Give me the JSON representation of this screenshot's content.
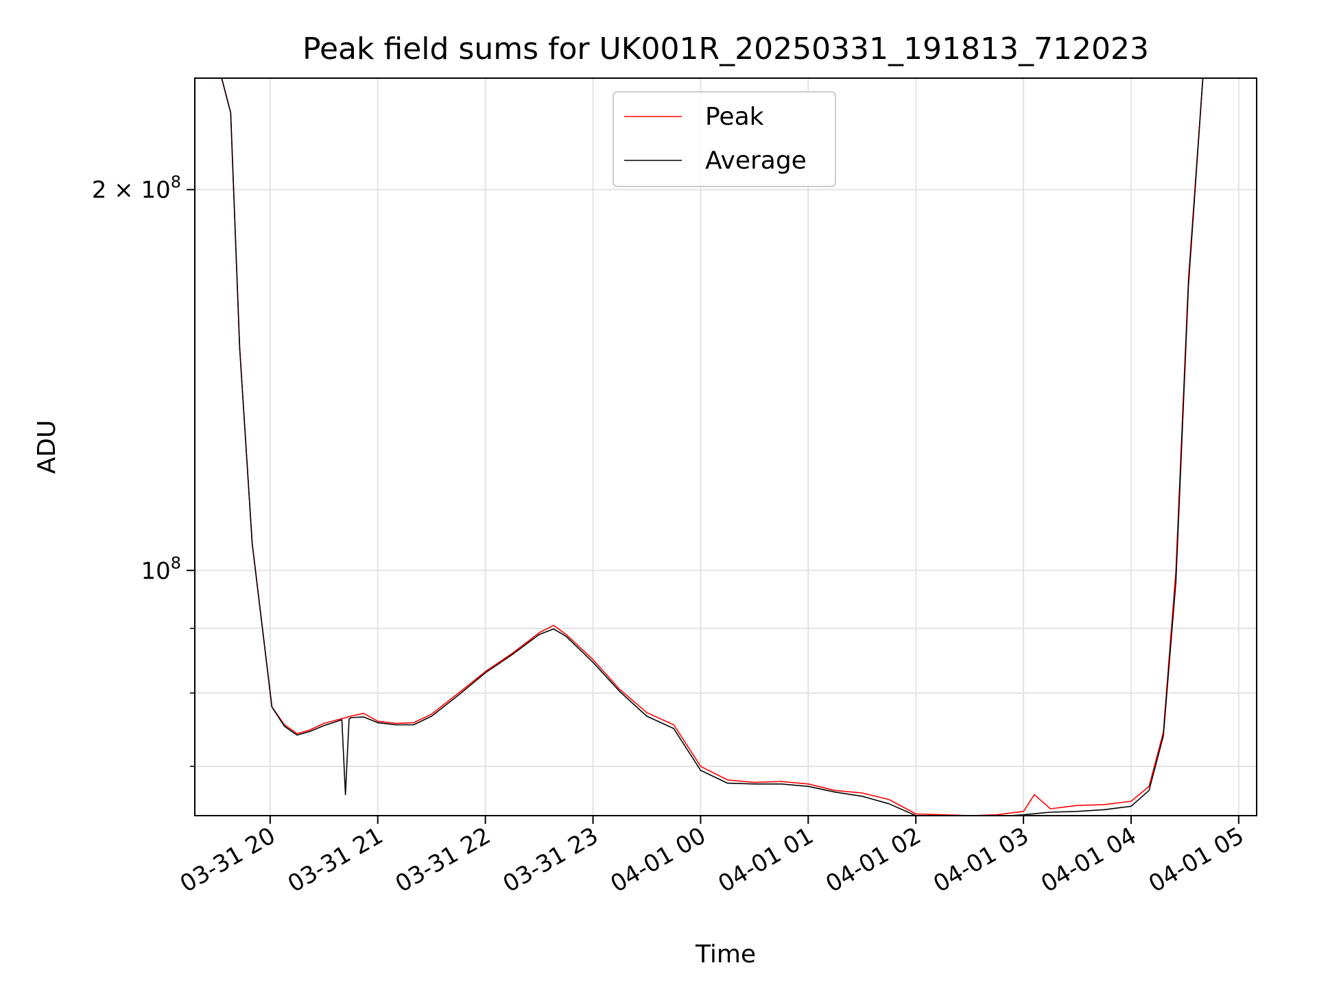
{
  "chart_data": {
    "type": "line",
    "title": "Peak field sums for UK001R_20250331_191813_712023",
    "xlabel": "Time",
    "ylabel": "ADU",
    "x_axis_type": "datetime",
    "xlim": [
      "2025-03-31 19:18",
      "2025-04-01 05:10"
    ],
    "y_scale": "log",
    "ylim": [
      64000000,
      245000000
    ],
    "grid": true,
    "legend_position": "top-center",
    "x_ticks": [
      {
        "value": "2025-03-31 20:00",
        "label": "03-31 20"
      },
      {
        "value": "2025-03-31 21:00",
        "label": "03-31 21"
      },
      {
        "value": "2025-03-31 22:00",
        "label": "03-31 22"
      },
      {
        "value": "2025-03-31 23:00",
        "label": "03-31 23"
      },
      {
        "value": "2025-04-01 00:00",
        "label": "04-01 00"
      },
      {
        "value": "2025-04-01 01:00",
        "label": "04-01 01"
      },
      {
        "value": "2025-04-01 02:00",
        "label": "04-01 02"
      },
      {
        "value": "2025-04-01 03:00",
        "label": "04-01 03"
      },
      {
        "value": "2025-04-01 04:00",
        "label": "04-01 04"
      },
      {
        "value": "2025-04-01 05:00",
        "label": "04-01 05"
      }
    ],
    "y_major_ticks": [
      {
        "value": 100000000,
        "mantissa": "",
        "base": "10",
        "exponent": "8"
      },
      {
        "value": 200000000,
        "mantissa": "2 × ",
        "base": "10",
        "exponent": "8"
      }
    ],
    "y_minor_ticks": [
      70000000,
      80000000,
      90000000
    ],
    "series": [
      {
        "name": "Peak",
        "color": "#ff0000",
        "x": [
          "2025-03-31 19:18",
          "2025-03-31 19:33",
          "2025-03-31 19:38",
          "2025-03-31 19:43",
          "2025-03-31 19:50",
          "2025-03-31 20:01",
          "2025-03-31 20:08",
          "2025-03-31 20:15",
          "2025-03-31 20:22",
          "2025-03-31 20:30",
          "2025-03-31 20:45",
          "2025-03-31 20:52",
          "2025-03-31 21:00",
          "2025-03-31 21:10",
          "2025-03-31 21:20",
          "2025-03-31 21:30",
          "2025-03-31 21:45",
          "2025-03-31 22:00",
          "2025-03-31 22:15",
          "2025-03-31 22:30",
          "2025-03-31 22:38",
          "2025-03-31 22:45",
          "2025-03-31 23:00",
          "2025-03-31 23:15",
          "2025-03-31 23:30",
          "2025-03-31 23:45",
          "2025-04-01 00:00",
          "2025-04-01 00:15",
          "2025-04-01 00:30",
          "2025-04-01 00:45",
          "2025-04-01 01:00",
          "2025-04-01 01:15",
          "2025-04-01 01:30",
          "2025-04-01 01:45",
          "2025-04-01 02:00",
          "2025-04-01 02:15",
          "2025-04-01 02:30",
          "2025-04-01 02:45",
          "2025-04-01 03:00",
          "2025-04-01 03:06",
          "2025-04-01 03:15",
          "2025-04-01 03:30",
          "2025-04-01 03:45",
          "2025-04-01 04:00",
          "2025-04-01 04:10",
          "2025-04-01 04:18",
          "2025-04-01 04:25",
          "2025-04-01 04:32",
          "2025-04-01 04:40",
          "2025-04-01 04:47",
          "2025-04-01 04:55"
        ],
        "values": [
          245000000,
          245000000,
          230000000,
          150000000,
          105000000,
          78000000,
          75500000,
          74300000,
          74800000,
          75700000,
          76700000,
          77100000,
          76000000,
          75700000,
          75800000,
          77000000,
          80000000,
          83200000,
          86000000,
          89300000,
          90500000,
          89000000,
          85000000,
          80500000,
          77200000,
          75500000,
          70000000,
          68300000,
          68000000,
          68100000,
          67800000,
          67000000,
          66700000,
          65900000,
          64200000,
          64100000,
          64000000,
          64100000,
          64500000,
          66500000,
          64800000,
          65200000,
          65300000,
          65700000,
          67500000,
          74500000,
          100000000,
          170000000,
          245000000,
          245000000,
          245000000
        ]
      },
      {
        "name": "Average",
        "color": "#000000",
        "x": [
          "2025-03-31 19:18",
          "2025-03-31 19:33",
          "2025-03-31 19:38",
          "2025-03-31 19:43",
          "2025-03-31 19:50",
          "2025-03-31 20:01",
          "2025-03-31 20:08",
          "2025-03-31 20:15",
          "2025-03-31 20:22",
          "2025-03-31 20:30",
          "2025-03-31 20:40",
          "2025-03-31 20:42",
          "2025-03-31 20:44",
          "2025-03-31 20:45",
          "2025-03-31 20:52",
          "2025-03-31 21:00",
          "2025-03-31 21:10",
          "2025-03-31 21:20",
          "2025-03-31 21:30",
          "2025-03-31 21:45",
          "2025-03-31 22:00",
          "2025-03-31 22:15",
          "2025-03-31 22:30",
          "2025-03-31 22:38",
          "2025-03-31 22:45",
          "2025-03-31 23:00",
          "2025-03-31 23:15",
          "2025-03-31 23:30",
          "2025-03-31 23:45",
          "2025-04-01 00:00",
          "2025-04-01 00:15",
          "2025-04-01 00:30",
          "2025-04-01 00:45",
          "2025-04-01 01:00",
          "2025-04-01 01:15",
          "2025-04-01 01:30",
          "2025-04-01 01:45",
          "2025-04-01 02:00",
          "2025-04-01 02:15",
          "2025-04-01 02:30",
          "2025-04-01 02:45",
          "2025-04-01 03:00",
          "2025-04-01 03:15",
          "2025-04-01 03:30",
          "2025-04-01 03:45",
          "2025-04-01 04:00",
          "2025-04-01 04:10",
          "2025-04-01 04:18",
          "2025-04-01 04:25",
          "2025-04-01 04:32",
          "2025-04-01 04:40",
          "2025-04-01 04:47",
          "2025-04-01 04:55"
        ],
        "values": [
          245000000,
          245000000,
          230000000,
          150000000,
          105000000,
          78000000,
          75300000,
          74100000,
          74600000,
          75400000,
          76200000,
          66500000,
          76300000,
          76500000,
          76600000,
          75800000,
          75500000,
          75500000,
          76700000,
          79700000,
          83000000,
          85800000,
          89000000,
          89900000,
          88700000,
          84600000,
          80200000,
          76700000,
          75000000,
          69500000,
          67900000,
          67800000,
          67800000,
          67500000,
          66800000,
          66300000,
          65400000,
          64000000,
          63900000,
          63800000,
          63900000,
          64100000,
          64400000,
          64500000,
          64700000,
          65100000,
          67000000,
          74000000,
          98000000,
          168000000,
          245000000,
          245000000,
          245000000
        ]
      }
    ]
  }
}
